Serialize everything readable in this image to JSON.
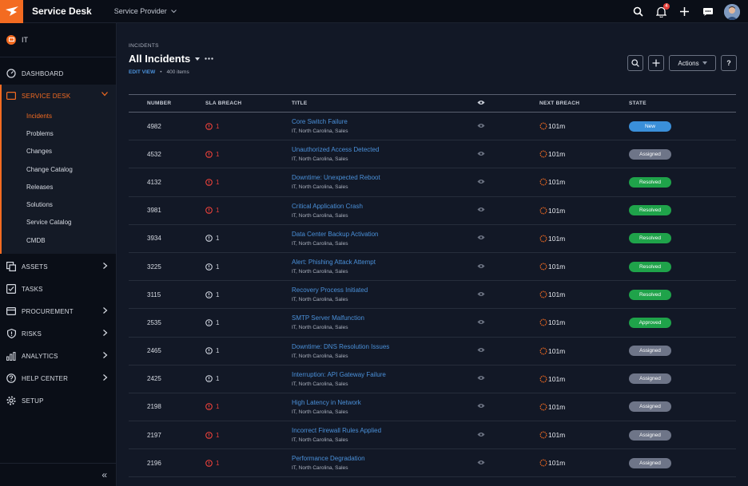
{
  "app": {
    "title": "Service Desk",
    "tenant": "Service Provider",
    "notifications": "4"
  },
  "colors": {
    "accent": "#f36b21",
    "link": "#4a90d9",
    "breach_red": "#e6403a"
  },
  "sidebar": {
    "org": "IT",
    "items_top": [
      {
        "label": "DASHBOARD",
        "icon": "gauge-icon"
      }
    ],
    "service_desk": {
      "label": "SERVICE DESK",
      "children": [
        "Incidents",
        "Problems",
        "Changes",
        "Change Catalog",
        "Releases",
        "Solutions",
        "Service Catalog",
        "CMDB"
      ],
      "active": "Incidents"
    },
    "items_bottom": [
      {
        "label": "ASSETS",
        "icon": "assets-icon",
        "chevron": true
      },
      {
        "label": "TASKS",
        "icon": "checkbox-icon",
        "chevron": false
      },
      {
        "label": "PROCUREMENT",
        "icon": "card-icon",
        "chevron": true
      },
      {
        "label": "RISKS",
        "icon": "shield-icon",
        "chevron": true
      },
      {
        "label": "ANALYTICS",
        "icon": "bars-icon",
        "chevron": true
      },
      {
        "label": "HELP CENTER",
        "icon": "help-icon",
        "chevron": true
      },
      {
        "label": "SETUP",
        "icon": "gear-icon",
        "chevron": false
      }
    ],
    "collapse_glyph": "«"
  },
  "page": {
    "breadcrumb": "INCIDENTS",
    "title": "All Incidents",
    "edit_view": "EDIT VIEW",
    "item_count": "400 items",
    "actions_label": "Actions",
    "help_label": "?"
  },
  "table": {
    "columns": [
      "NUMBER",
      "SLA BREACH",
      "TITLE",
      "",
      "NEXT BREACH",
      "STATE"
    ],
    "rows": [
      {
        "number": "4982",
        "sla": "1",
        "breach": true,
        "title": "Core Switch Failure",
        "sub": "IT, North Carolina, Sales",
        "next": "101m",
        "state": "New"
      },
      {
        "number": "4532",
        "sla": "1",
        "breach": true,
        "title": "Unauthorized Access Detected",
        "sub": "IT, North Carolina, Sales",
        "next": "101m",
        "state": "Assigned"
      },
      {
        "number": "4132",
        "sla": "1",
        "breach": true,
        "title": "Downtime: Unexpected Reboot",
        "sub": "IT, North Carolina, Sales",
        "next": "101m",
        "state": "Resolved"
      },
      {
        "number": "3981",
        "sla": "1",
        "breach": true,
        "title": "Critical Application Crash",
        "sub": "IT, North Carolina, Sales",
        "next": "101m",
        "state": "Resolved"
      },
      {
        "number": "3934",
        "sla": "1",
        "breach": false,
        "title": "Data Center Backup Activation",
        "sub": "IT, North Carolina, Sales",
        "next": "101m",
        "state": "Resolved"
      },
      {
        "number": "3225",
        "sla": "1",
        "breach": false,
        "title": "Alert: Phishing Attack Attempt",
        "sub": "IT, North Carolina, Sales",
        "next": "101m",
        "state": "Resolved"
      },
      {
        "number": "3115",
        "sla": "1",
        "breach": false,
        "title": "Recovery Process Initiated",
        "sub": "IT, North Carolina, Sales",
        "next": "101m",
        "state": "Resolved"
      },
      {
        "number": "2535",
        "sla": "1",
        "breach": false,
        "title": "SMTP Server Malfunction",
        "sub": "IT, North Carolina, Sales",
        "next": "101m",
        "state": "Approved"
      },
      {
        "number": "2465",
        "sla": "1",
        "breach": false,
        "title": "Downtime: DNS Resolution Issues",
        "sub": "IT, North Carolina, Sales",
        "next": "101m",
        "state": "Assigned"
      },
      {
        "number": "2425",
        "sla": "1",
        "breach": false,
        "title": "Interruption: API Gateway Failure",
        "sub": "IT, North Carolina, Sales",
        "next": "101m",
        "state": "Assigned"
      },
      {
        "number": "2198",
        "sla": "1",
        "breach": true,
        "title": "High Latency in Network",
        "sub": "IT, North Carolina, Sales",
        "next": "101m",
        "state": "Assigned"
      },
      {
        "number": "2197",
        "sla": "1",
        "breach": true,
        "title": "Incorrect Firewall Rules Applied",
        "sub": "IT, North Carolina, Sales",
        "next": "101m",
        "state": "Assigned"
      },
      {
        "number": "2196",
        "sla": "1",
        "breach": true,
        "title": "Performance Degradation",
        "sub": "IT, North Carolina, Sales",
        "next": "101m",
        "state": "Assigned"
      }
    ],
    "state_colors": {
      "New": "#3a8fd9",
      "Assigned": "#6e7588",
      "Resolved": "#1fa34a",
      "Approved": "#1fa34a"
    }
  }
}
